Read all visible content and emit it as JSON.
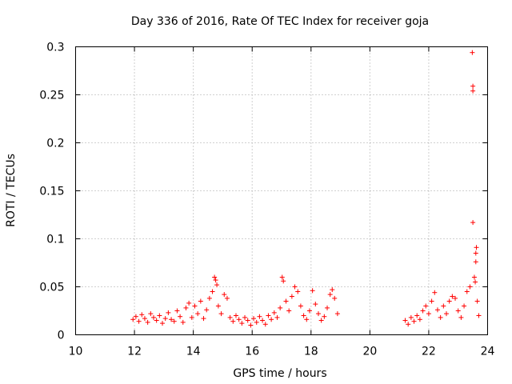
{
  "chart_data": {
    "type": "scatter",
    "title": "Day 336 of 2016, Rate Of TEC Index for receiver goja",
    "xlabel": "GPS time / hours",
    "ylabel": "ROTI / TECUs",
    "xlim": [
      10,
      24
    ],
    "ylim": [
      0,
      0.3
    ],
    "x_ticks": [
      10,
      12,
      14,
      16,
      18,
      20,
      22,
      24
    ],
    "y_ticks": [
      0,
      0.05,
      0.1,
      0.15,
      0.2,
      0.25,
      0.3
    ],
    "x_tick_labels": [
      "10",
      "12",
      "14",
      "16",
      "18",
      "20",
      "22",
      "24"
    ],
    "y_tick_labels": [
      "0",
      "0.05",
      "0.1",
      "0.15",
      "0.2",
      "0.25",
      "0.3"
    ],
    "grid": true,
    "marker": "+",
    "marker_color": "#ff0000",
    "series": [
      {
        "points": [
          [
            11.95,
            0.016
          ],
          [
            12.05,
            0.019
          ],
          [
            12.15,
            0.014
          ],
          [
            12.25,
            0.021
          ],
          [
            12.35,
            0.017
          ],
          [
            12.45,
            0.013
          ],
          [
            12.55,
            0.022
          ],
          [
            12.65,
            0.018
          ],
          [
            12.75,
            0.015
          ],
          [
            12.85,
            0.02
          ],
          [
            12.95,
            0.012
          ],
          [
            13.05,
            0.017
          ],
          [
            13.15,
            0.023
          ],
          [
            13.25,
            0.016
          ],
          [
            13.35,
            0.014
          ],
          [
            13.45,
            0.025
          ],
          [
            13.55,
            0.019
          ],
          [
            13.65,
            0.013
          ],
          [
            13.75,
            0.028
          ],
          [
            13.85,
            0.033
          ],
          [
            13.95,
            0.018
          ],
          [
            14.05,
            0.03
          ],
          [
            14.15,
            0.022
          ],
          [
            14.25,
            0.035
          ],
          [
            14.35,
            0.017
          ],
          [
            14.45,
            0.026
          ],
          [
            14.55,
            0.038
          ],
          [
            14.65,
            0.045
          ],
          [
            14.72,
            0.06
          ],
          [
            14.76,
            0.057
          ],
          [
            14.8,
            0.052
          ],
          [
            14.85,
            0.03
          ],
          [
            14.95,
            0.022
          ],
          [
            15.05,
            0.042
          ],
          [
            15.15,
            0.038
          ],
          [
            15.25,
            0.018
          ],
          [
            15.35,
            0.014
          ],
          [
            15.45,
            0.02
          ],
          [
            15.55,
            0.016
          ],
          [
            15.65,
            0.012
          ],
          [
            15.75,
            0.018
          ],
          [
            15.85,
            0.015
          ],
          [
            15.95,
            0.01
          ],
          [
            16.05,
            0.017
          ],
          [
            16.15,
            0.013
          ],
          [
            16.25,
            0.019
          ],
          [
            16.35,
            0.015
          ],
          [
            16.45,
            0.011
          ],
          [
            16.55,
            0.02
          ],
          [
            16.65,
            0.016
          ],
          [
            16.75,
            0.023
          ],
          [
            16.85,
            0.018
          ],
          [
            16.95,
            0.028
          ],
          [
            17.02,
            0.06
          ],
          [
            17.06,
            0.056
          ],
          [
            17.15,
            0.035
          ],
          [
            17.25,
            0.025
          ],
          [
            17.35,
            0.04
          ],
          [
            17.45,
            0.05
          ],
          [
            17.55,
            0.045
          ],
          [
            17.65,
            0.03
          ],
          [
            17.75,
            0.02
          ],
          [
            17.85,
            0.016
          ],
          [
            17.95,
            0.025
          ],
          [
            18.05,
            0.046
          ],
          [
            18.15,
            0.032
          ],
          [
            18.25,
            0.022
          ],
          [
            18.35,
            0.015
          ],
          [
            18.45,
            0.019
          ],
          [
            18.55,
            0.028
          ],
          [
            18.65,
            0.042
          ],
          [
            18.72,
            0.047
          ],
          [
            18.8,
            0.038
          ],
          [
            18.9,
            0.022
          ],
          [
            21.2,
            0.015
          ],
          [
            21.3,
            0.011
          ],
          [
            21.4,
            0.018
          ],
          [
            21.5,
            0.014
          ],
          [
            21.6,
            0.02
          ],
          [
            21.7,
            0.016
          ],
          [
            21.8,
            0.025
          ],
          [
            21.9,
            0.03
          ],
          [
            22.0,
            0.022
          ],
          [
            22.1,
            0.035
          ],
          [
            22.2,
            0.044
          ],
          [
            22.3,
            0.026
          ],
          [
            22.4,
            0.018
          ],
          [
            22.5,
            0.03
          ],
          [
            22.6,
            0.022
          ],
          [
            22.7,
            0.035
          ],
          [
            22.8,
            0.04
          ],
          [
            22.9,
            0.038
          ],
          [
            23.0,
            0.025
          ],
          [
            23.1,
            0.018
          ],
          [
            23.2,
            0.03
          ],
          [
            23.3,
            0.045
          ],
          [
            23.4,
            0.05
          ],
          [
            23.48,
            0.294
          ],
          [
            23.5,
            0.259
          ],
          [
            23.5,
            0.254
          ],
          [
            23.5,
            0.117
          ],
          [
            23.55,
            0.06
          ],
          [
            23.58,
            0.055
          ],
          [
            23.6,
            0.085
          ],
          [
            23.62,
            0.091
          ],
          [
            23.6,
            0.076
          ],
          [
            23.65,
            0.035
          ],
          [
            23.7,
            0.02
          ]
        ]
      }
    ]
  }
}
